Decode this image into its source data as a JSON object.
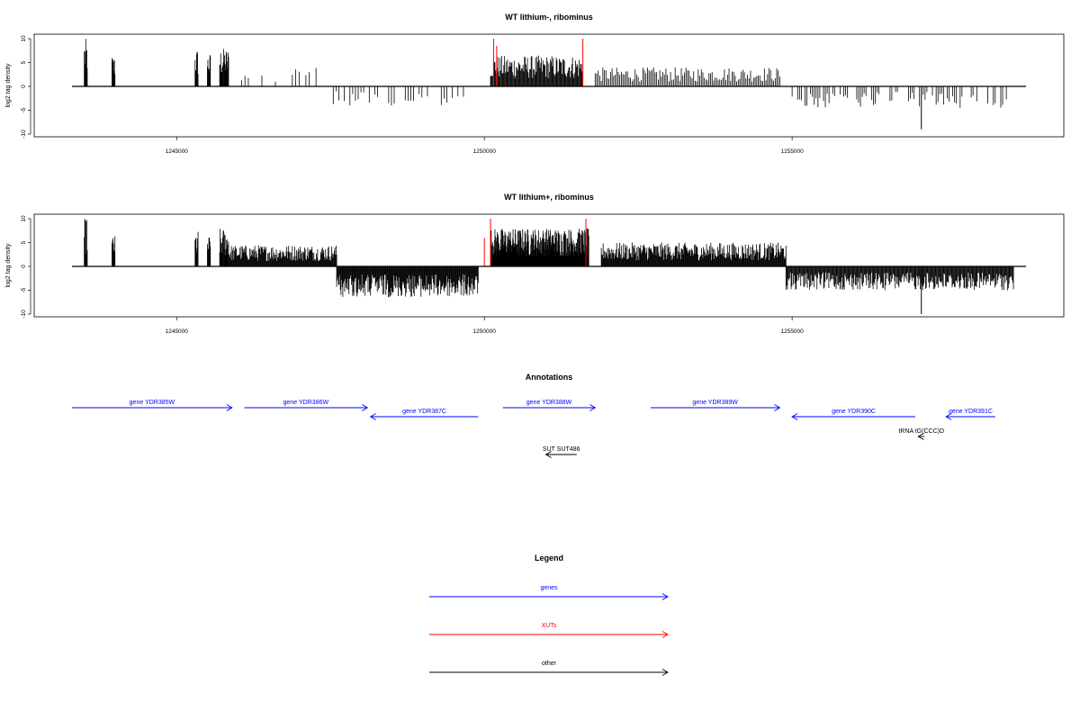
{
  "chart_data": [
    {
      "type": "bar",
      "title": "WT lithium-, ribominus",
      "ylabel": "log2 tag density",
      "xlabel": "",
      "xlim": [
        1243300,
        1258800
      ],
      "ylim": [
        -10,
        10
      ],
      "x_ticks": [
        1245000,
        1250000,
        1255000
      ],
      "y_ticks": [
        10,
        5,
        0,
        -5,
        -10
      ],
      "grid": false,
      "segments": [
        {
          "start": 1243500,
          "end": 1243550,
          "max": 10,
          "step": 8
        },
        {
          "start": 1243950,
          "end": 1244000,
          "max": 6.5,
          "step": 8
        },
        {
          "start": 1245300,
          "end": 1245350,
          "max": 8,
          "step": 8
        },
        {
          "start": 1245500,
          "end": 1245550,
          "max": 7,
          "step": 8
        },
        {
          "start": 1245700,
          "end": 1245850,
          "max": 8,
          "step": 8
        },
        {
          "start": 1246000,
          "end": 1247300,
          "max": 4,
          "step": 55,
          "sparse": true
        },
        {
          "start": 1247500,
          "end": 1249700,
          "min": -4,
          "step": 45,
          "sparse": true
        },
        {
          "start": 1250100,
          "end": 1251600,
          "max": 6.5,
          "step": 12
        },
        {
          "start": 1251800,
          "end": 1254800,
          "max": 4,
          "step": 25
        },
        {
          "start": 1255000,
          "end": 1258500,
          "min": -4.5,
          "step": 30,
          "sparse": true
        }
      ],
      "spikes": [
        {
          "x": 1257100,
          "y": -9,
          "color": "#000000"
        },
        {
          "x": 1250150,
          "y": 10,
          "color": "#ff0000"
        },
        {
          "x": 1251600,
          "y": 10,
          "color": "#ff0000"
        },
        {
          "x": 1250200,
          "y": 8.5,
          "color": "#ff0000"
        }
      ]
    },
    {
      "type": "bar",
      "title": "WT lithium+, ribominus",
      "ylabel": "log2 tag density",
      "xlabel": "",
      "xlim": [
        1243300,
        1258800
      ],
      "ylim": [
        -10,
        10
      ],
      "x_ticks": [
        1245000,
        1250000,
        1255000
      ],
      "y_ticks": [
        10,
        5,
        0,
        -5,
        -10
      ],
      "grid": false,
      "segments": [
        {
          "start": 1243500,
          "end": 1243550,
          "max": 10,
          "step": 8
        },
        {
          "start": 1243950,
          "end": 1244000,
          "max": 6.5,
          "step": 8
        },
        {
          "start": 1245300,
          "end": 1245350,
          "max": 7.5,
          "step": 8
        },
        {
          "start": 1245500,
          "end": 1245550,
          "max": 6.5,
          "step": 8
        },
        {
          "start": 1245700,
          "end": 1245850,
          "max": 8,
          "step": 8
        },
        {
          "start": 1245850,
          "end": 1247600,
          "max": 4.5,
          "step": 10
        },
        {
          "start": 1247600,
          "end": 1249900,
          "min": -6.5,
          "step": 10
        },
        {
          "start": 1250100,
          "end": 1251700,
          "max": 8,
          "step": 6
        },
        {
          "start": 1251900,
          "end": 1254900,
          "max": 5,
          "step": 10
        },
        {
          "start": 1254900,
          "end": 1258600,
          "min": -5,
          "step": 12
        }
      ],
      "spikes": [
        {
          "x": 1257100,
          "y": -10,
          "color": "#000000"
        },
        {
          "x": 1250100,
          "y": 10,
          "color": "#ff0000"
        },
        {
          "x": 1251650,
          "y": 10,
          "color": "#ff0000"
        },
        {
          "x": 1250000,
          "y": 6,
          "color": "#ff0000"
        }
      ]
    }
  ],
  "annotations": {
    "title": "Annotations",
    "genes": [
      {
        "label": "gene YDR385W",
        "from": 1243300,
        "to": 1245900,
        "dir": "right",
        "row": 0,
        "color": "#0000ff"
      },
      {
        "label": "gene YDR386W",
        "from": 1246100,
        "to": 1248100,
        "dir": "right",
        "row": 0,
        "color": "#0000ff"
      },
      {
        "label": "gene YDR387C",
        "from": 1249900,
        "to": 1248150,
        "dir": "left",
        "row": 1,
        "color": "#0000ff"
      },
      {
        "label": "gene YDR388W",
        "from": 1250300,
        "to": 1251800,
        "dir": "right",
        "row": 0,
        "color": "#0000ff"
      },
      {
        "label": "gene YDR389W",
        "from": 1252700,
        "to": 1254800,
        "dir": "right",
        "row": 0,
        "color": "#0000ff"
      },
      {
        "label": "gene YDR390C",
        "from": 1257000,
        "to": 1255000,
        "dir": "left",
        "row": 1,
        "color": "#0000ff"
      },
      {
        "label": "gene YDR391C",
        "from": 1258300,
        "to": 1257500,
        "dir": "left",
        "row": 1,
        "color": "#0000ff"
      }
    ],
    "others": [
      {
        "label": "tRNA tG(CCC)D",
        "from": 1257150,
        "to": 1257050,
        "dir": "left",
        "row": 2,
        "color": "#000000"
      },
      {
        "label": "SUT SUT486",
        "from": 1251500,
        "to": 1251000,
        "dir": "left",
        "row": 3,
        "color": "#000000"
      }
    ]
  },
  "legend": {
    "title": "Legend",
    "items": [
      {
        "label": "genes",
        "color": "#0000ff"
      },
      {
        "label": "XUTs",
        "color": "#ff0000"
      },
      {
        "label": "other",
        "color": "#000000"
      }
    ]
  }
}
